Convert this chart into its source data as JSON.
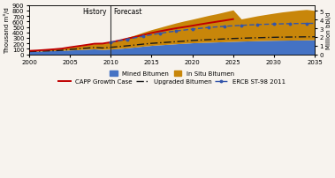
{
  "ylabel_left": "Thousand m³/d",
  "ylabel_right": "Million bbl/d",
  "ylim_left": [
    0,
    900
  ],
  "ylim_right": [
    0,
    5.67
  ],
  "xlim": [
    2000,
    2035
  ],
  "yticks_left": [
    0,
    100,
    200,
    300,
    400,
    500,
    600,
    700,
    800,
    900
  ],
  "yticks_right": [
    0,
    1,
    2,
    3,
    4,
    5
  ],
  "xticks": [
    2000,
    2005,
    2010,
    2015,
    2020,
    2025,
    2030,
    2035
  ],
  "divider_x": 2010,
  "history_label": "History",
  "forecast_label": "Forecast",
  "bg_color": "#f7f3ee",
  "mined_color": "#4472C4",
  "insitu_color": "#C8860A",
  "capp_color": "#C00000",
  "upgraded_color": "#1a1a1a",
  "ercb_color": "#3355AA",
  "all_years": [
    2000,
    2001,
    2002,
    2003,
    2004,
    2005,
    2006,
    2007,
    2008,
    2009,
    2010,
    2011,
    2012,
    2013,
    2014,
    2015,
    2016,
    2017,
    2018,
    2019,
    2020,
    2021,
    2022,
    2023,
    2024,
    2025,
    2026,
    2027,
    2028,
    2029,
    2030,
    2031,
    2032,
    2033,
    2034,
    2035
  ],
  "mined_vals": [
    55,
    58,
    62,
    67,
    72,
    78,
    84,
    92,
    98,
    88,
    95,
    105,
    118,
    132,
    148,
    162,
    172,
    182,
    192,
    200,
    210,
    215,
    220,
    225,
    230,
    235,
    240,
    244,
    248,
    252,
    255,
    257,
    259,
    261,
    263,
    265
  ],
  "insitu_vals": [
    8,
    12,
    18,
    24,
    32,
    50,
    65,
    78,
    95,
    108,
    125,
    155,
    188,
    220,
    255,
    288,
    318,
    350,
    380,
    408,
    430,
    460,
    490,
    515,
    545,
    575,
    405,
    430,
    455,
    475,
    495,
    515,
    530,
    545,
    555,
    535
  ],
  "capp_years": [
    2000,
    2001,
    2002,
    2003,
    2004,
    2005,
    2006,
    2007,
    2008,
    2009,
    2010,
    2011,
    2012,
    2013,
    2014,
    2015,
    2016,
    2017,
    2018,
    2019,
    2020,
    2021,
    2022,
    2023,
    2024,
    2025
  ],
  "capp_vals": [
    63,
    70,
    80,
    91,
    104,
    128,
    149,
    170,
    193,
    196,
    220,
    250,
    285,
    318,
    355,
    390,
    420,
    448,
    475,
    498,
    522,
    548,
    572,
    595,
    618,
    642
  ],
  "upgraded_years": [
    2000,
    2001,
    2002,
    2003,
    2004,
    2005,
    2006,
    2007,
    2008,
    2009,
    2010,
    2011,
    2012,
    2013,
    2014,
    2015,
    2016,
    2017,
    2018,
    2019,
    2020,
    2021,
    2022,
    2023,
    2024,
    2025,
    2026,
    2027,
    2028,
    2029,
    2030,
    2031,
    2032,
    2033,
    2034,
    2035
  ],
  "upgraded_vals": [
    50,
    55,
    60,
    65,
    72,
    88,
    100,
    112,
    125,
    115,
    128,
    140,
    155,
    170,
    186,
    200,
    210,
    220,
    230,
    240,
    252,
    260,
    267,
    274,
    281,
    288,
    293,
    298,
    302,
    306,
    310,
    313,
    315,
    317,
    319,
    320
  ],
  "ercb_years": [
    2010,
    2011,
    2012,
    2013,
    2014,
    2015,
    2016,
    2017,
    2018,
    2019,
    2020,
    2021,
    2022,
    2023,
    2024,
    2025,
    2026,
    2027,
    2028,
    2029,
    2030,
    2031,
    2032,
    2033,
    2034,
    2035
  ],
  "ercb_vals": [
    220,
    248,
    275,
    302,
    330,
    358,
    382,
    405,
    425,
    442,
    460,
    475,
    490,
    500,
    512,
    520,
    528,
    536,
    542,
    548,
    552,
    556,
    560,
    562,
    564,
    565
  ],
  "legend_entries": [
    "Mined Bitumen",
    "In Situ Bitumen",
    "CAPP Growth Case",
    "Upgraded Bitumen",
    "ERCB ST-98 2011"
  ]
}
